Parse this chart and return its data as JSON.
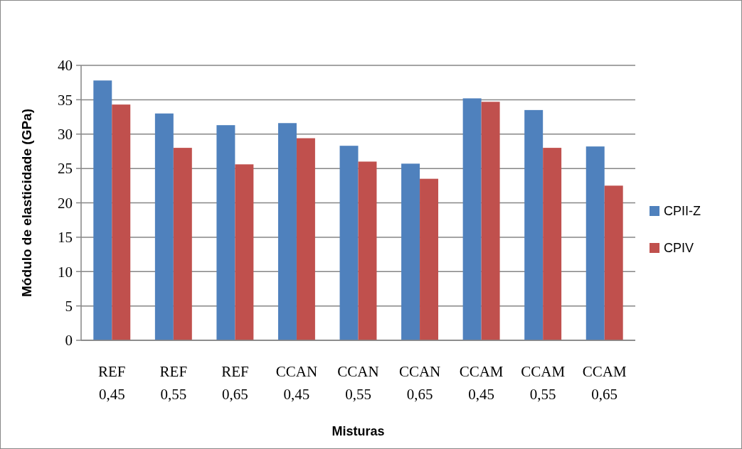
{
  "chart_data": {
    "type": "bar",
    "xlabel": "Misturas",
    "ylabel": "Módulo de elasticidade (GPa)",
    "categories": [
      "REF 0,45",
      "REF 0,55",
      "REF 0,65",
      "CCAN 0,45",
      "CCAN 0,55",
      "CCAN 0,65",
      "CCAM 0,45",
      "CCAM 0,55",
      "CCAM 0,65"
    ],
    "series": [
      {
        "name": "CPII-Z",
        "color": "#4f81bd",
        "values": [
          37.8,
          33.0,
          31.3,
          31.6,
          28.3,
          25.7,
          35.2,
          33.5,
          28.2
        ]
      },
      {
        "name": "CPIV",
        "color": "#c0504d",
        "values": [
          34.3,
          28.0,
          25.6,
          29.4,
          26.0,
          23.5,
          34.7,
          28.0,
          22.5
        ]
      }
    ],
    "ylim": [
      0,
      40
    ],
    "yticks": [
      0,
      5,
      10,
      15,
      20,
      25,
      30,
      35,
      40
    ],
    "grid": "y",
    "legend": "right"
  }
}
